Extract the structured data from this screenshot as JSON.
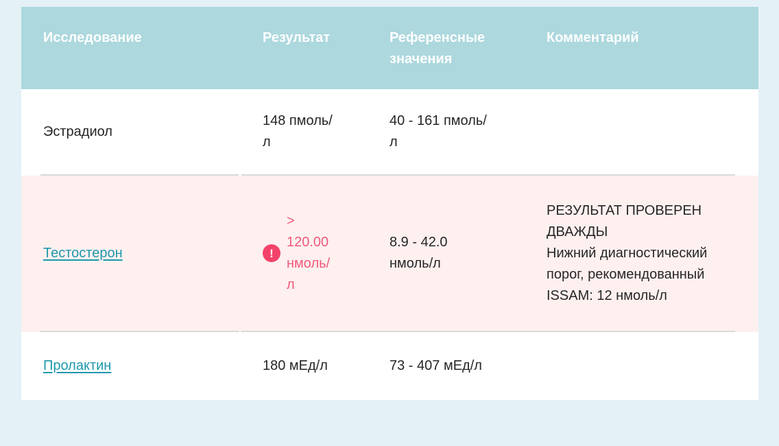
{
  "colors": {
    "page_bg": "#e4f1f6",
    "header_bg": "#acd8de",
    "header_text": "#ffffff",
    "body_text": "#262626",
    "link": "#1d98ab",
    "alert_text": "#f2597c",
    "alert_badge_bg": "#f4436a",
    "highlight_row_bg": "#fdf0ef",
    "row_border": "#d9d9d9"
  },
  "table": {
    "headers": {
      "study": "Исследование",
      "result": "Результат",
      "reference": "Референсные значения",
      "comment": "Комментарий"
    },
    "alert_badge_glyph": "!",
    "rows": [
      {
        "study": "Эстрадиол",
        "is_link": false,
        "result": "148 пмоль/л",
        "reference": "40 - 161 пмоль/л",
        "comment": []
      },
      {
        "study": "Тестостерон",
        "is_link": true,
        "result": "> 120.00 нмоль/л",
        "result_alert": true,
        "reference": "8.9 - 42.0 нмоль/л",
        "comment": [
          "РЕЗУЛЬТАТ ПРОВЕРЕН ДВАЖДЫ",
          "Нижний диагностический порог, рекомендованный ISSAM: 12 нмоль/л"
        ]
      },
      {
        "study": "Пролактин",
        "is_link": true,
        "result": "180 мЕд/л",
        "reference": "73 - 407 мЕд/л",
        "comment": []
      }
    ]
  }
}
